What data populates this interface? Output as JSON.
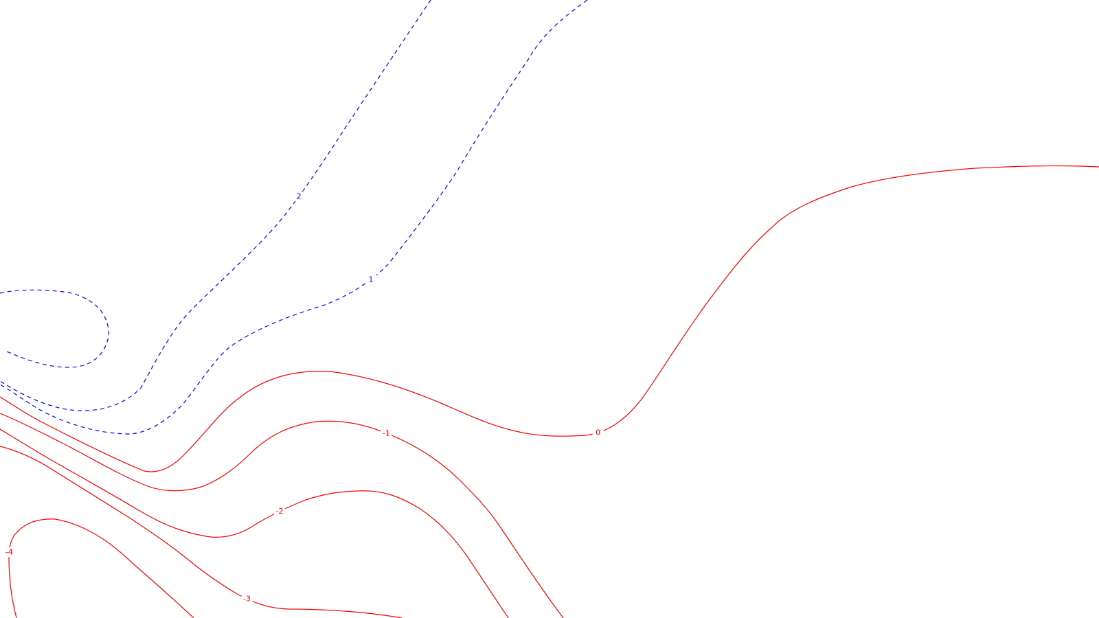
{
  "chart_data": {
    "type": "contour",
    "title": "",
    "xlabel": "",
    "ylabel": "",
    "grid": false,
    "legend": "none",
    "colors": {
      "positive": "#0000ff",
      "negative": "#ff0000"
    },
    "levels": [
      {
        "value": 2,
        "label": "2",
        "sign": "positive",
        "style": "dashed"
      },
      {
        "value": 1,
        "label": "1",
        "sign": "positive",
        "style": "dashed"
      },
      {
        "value": 0,
        "label": "0",
        "sign": "negative",
        "style": "solid"
      },
      {
        "value": -1,
        "label": "-1",
        "sign": "negative",
        "style": "solid"
      },
      {
        "value": -2,
        "label": "-2",
        "sign": "negative",
        "style": "solid"
      },
      {
        "value": -3,
        "label": "-3",
        "sign": "negative",
        "style": "solid"
      },
      {
        "value": -4,
        "label": "-4",
        "sign": "negative",
        "style": "solid"
      }
    ]
  }
}
